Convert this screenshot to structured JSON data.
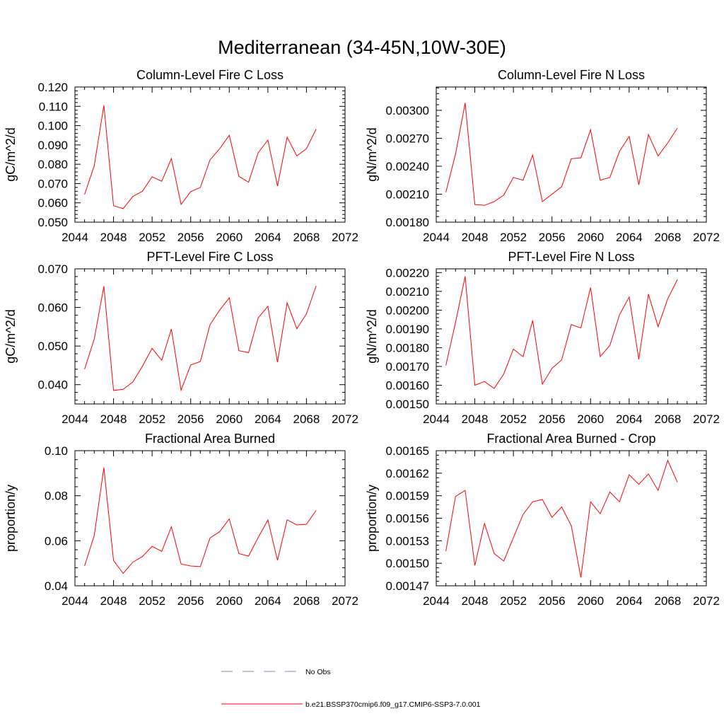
{
  "page": {
    "title": "Mediterranean (34-45N,10W-30E)"
  },
  "legend": {
    "entries": [
      {
        "label": "No Obs",
        "color": "#8080c0",
        "style": "dashed"
      },
      {
        "label": "b.e21.BSSP370cmip6.f09_g17.CMIP6-SSP3-7.0.001",
        "color": "#ff0000",
        "style": "solid"
      }
    ]
  },
  "chart_data": [
    {
      "type": "line",
      "title": "Column-Level Fire C Loss",
      "ylabel": "gC/m^2/d",
      "xlim": [
        2044,
        2072
      ],
      "ylim": [
        0.05,
        0.12
      ],
      "xticks": [
        2044,
        2048,
        2052,
        2056,
        2060,
        2064,
        2068,
        2072
      ],
      "xtick_labels": [
        "2044",
        "2048",
        "2052",
        "2056",
        "2060",
        "2064",
        "2068",
        "2072"
      ],
      "yticks": [
        0.05,
        0.06,
        0.07,
        0.08,
        0.09,
        0.1,
        0.11,
        0.12
      ],
      "ytick_labels": [
        "0.050",
        "0.060",
        "0.070",
        "0.080",
        "0.090",
        "0.100",
        "0.110",
        "0.120"
      ],
      "x": [
        2045,
        2046,
        2047,
        2048,
        2049,
        2050,
        2051,
        2052,
        2053,
        2054,
        2055,
        2056,
        2057,
        2058,
        2059,
        2060,
        2061,
        2062,
        2063,
        2064,
        2065,
        2066,
        2067,
        2068,
        2069
      ],
      "series": [
        {
          "name": "b.e21.BSSP370cmip6.f09_g17.CMIP6-SSP3-7.0.001",
          "color": "#ff0000",
          "values": [
            0.0643,
            0.0792,
            0.1105,
            0.0585,
            0.057,
            0.0633,
            0.066,
            0.0735,
            0.0712,
            0.083,
            0.0592,
            0.0658,
            0.068,
            0.0822,
            0.088,
            0.095,
            0.0737,
            0.0707,
            0.086,
            0.0925,
            0.0687,
            0.094,
            0.0843,
            0.088,
            0.0982
          ]
        }
      ]
    },
    {
      "type": "line",
      "title": "Column-Level Fire N Loss",
      "ylabel": "gN/m^2/d",
      "xlim": [
        2044,
        2072
      ],
      "ylim": [
        0.0018,
        0.00325
      ],
      "xticks": [
        2044,
        2048,
        2052,
        2056,
        2060,
        2064,
        2068,
        2072
      ],
      "xtick_labels": [
        "2044",
        "2048",
        "2052",
        "2056",
        "2060",
        "2064",
        "2068",
        "2072"
      ],
      "yticks": [
        0.0018,
        0.0021,
        0.0024,
        0.0027,
        0.003
      ],
      "ytick_labels": [
        "0.00180",
        "0.00210",
        "0.00240",
        "0.00270",
        "0.00300"
      ],
      "x": [
        2045,
        2046,
        2047,
        2048,
        2049,
        2050,
        2051,
        2052,
        2053,
        2054,
        2055,
        2056,
        2057,
        2058,
        2059,
        2060,
        2061,
        2062,
        2063,
        2064,
        2065,
        2066,
        2067,
        2068,
        2069
      ],
      "series": [
        {
          "name": "b.e21.BSSP370cmip6.f09_g17.CMIP6-SSP3-7.0.001",
          "color": "#ff0000",
          "values": [
            0.00212,
            0.00253,
            0.00308,
            0.00199,
            0.00198,
            0.00202,
            0.00209,
            0.00228,
            0.00225,
            0.00252,
            0.00202,
            0.0021,
            0.00218,
            0.00248,
            0.00249,
            0.00279,
            0.00225,
            0.00228,
            0.00256,
            0.00272,
            0.0022,
            0.00274,
            0.00251,
            0.00265,
            0.00281
          ]
        }
      ]
    },
    {
      "type": "line",
      "title": "PFT-Level Fire C Loss",
      "ylabel": "gC/m^2/d",
      "xlim": [
        2044,
        2072
      ],
      "ylim": [
        0.035,
        0.07
      ],
      "xticks": [
        2044,
        2048,
        2052,
        2056,
        2060,
        2064,
        2068,
        2072
      ],
      "xtick_labels": [
        "2044",
        "2048",
        "2052",
        "2056",
        "2060",
        "2064",
        "2068",
        "2072"
      ],
      "yticks": [
        0.04,
        0.05,
        0.06,
        0.07
      ],
      "ytick_labels": [
        "0.040",
        "0.050",
        "0.060",
        "0.070"
      ],
      "x": [
        2045,
        2046,
        2047,
        2048,
        2049,
        2050,
        2051,
        2052,
        2053,
        2054,
        2055,
        2056,
        2057,
        2058,
        2059,
        2060,
        2061,
        2062,
        2063,
        2064,
        2065,
        2066,
        2067,
        2068,
        2069
      ],
      "series": [
        {
          "name": "b.e21.BSSP370cmip6.f09_g17.CMIP6-SSP3-7.0.001",
          "color": "#ff0000",
          "values": [
            0.044,
            0.0518,
            0.0655,
            0.0385,
            0.0388,
            0.0407,
            0.0448,
            0.0494,
            0.0463,
            0.0544,
            0.0386,
            0.0451,
            0.046,
            0.0555,
            0.0593,
            0.0625,
            0.0488,
            0.0483,
            0.0573,
            0.0603,
            0.0458,
            0.0612,
            0.0545,
            0.0583,
            0.0656
          ]
        }
      ]
    },
    {
      "type": "line",
      "title": "PFT-Level Fire N Loss",
      "ylabel": "gN/m^2/d",
      "xlim": [
        2044,
        2072
      ],
      "ylim": [
        0.0015,
        0.00222
      ],
      "xticks": [
        2044,
        2048,
        2052,
        2056,
        2060,
        2064,
        2068,
        2072
      ],
      "xtick_labels": [
        "2044",
        "2048",
        "2052",
        "2056",
        "2060",
        "2064",
        "2068",
        "2072"
      ],
      "yticks": [
        0.0015,
        0.0016,
        0.0017,
        0.0018,
        0.0019,
        0.002,
        0.0021,
        0.0022
      ],
      "ytick_labels": [
        "0.00150",
        "0.00160",
        "0.00170",
        "0.00180",
        "0.00190",
        "0.00200",
        "0.00210",
        "0.00220"
      ],
      "x": [
        2045,
        2046,
        2047,
        2048,
        2049,
        2050,
        2051,
        2052,
        2053,
        2054,
        2055,
        2056,
        2057,
        2058,
        2059,
        2060,
        2061,
        2062,
        2063,
        2064,
        2065,
        2066,
        2067,
        2068,
        2069
      ],
      "series": [
        {
          "name": "b.e21.BSSP370cmip6.f09_g17.CMIP6-SSP3-7.0.001",
          "color": "#ff0000",
          "values": [
            0.001705,
            0.001935,
            0.00218,
            0.0016,
            0.00162,
            0.001583,
            0.00166,
            0.001792,
            0.001752,
            0.001945,
            0.001605,
            0.00169,
            0.001735,
            0.001923,
            0.001905,
            0.00212,
            0.001752,
            0.001812,
            0.001975,
            0.00207,
            0.001738,
            0.002085,
            0.001912,
            0.00206,
            0.002163
          ]
        }
      ]
    },
    {
      "type": "line",
      "title": "Fractional Area Burned",
      "ylabel": "proportion/y",
      "xlim": [
        2044,
        2072
      ],
      "ylim": [
        0.04,
        0.1
      ],
      "xticks": [
        2044,
        2048,
        2052,
        2056,
        2060,
        2064,
        2068,
        2072
      ],
      "xtick_labels": [
        "2044",
        "2048",
        "2052",
        "2056",
        "2060",
        "2064",
        "2068",
        "2072"
      ],
      "yticks": [
        0.04,
        0.06,
        0.08,
        0.1
      ],
      "ytick_labels": [
        "0.04",
        "0.06",
        "0.08",
        "0.10"
      ],
      "x": [
        2045,
        2046,
        2047,
        2048,
        2049,
        2050,
        2051,
        2052,
        2053,
        2054,
        2055,
        2056,
        2057,
        2058,
        2059,
        2060,
        2061,
        2062,
        2063,
        2064,
        2065,
        2066,
        2067,
        2068,
        2069
      ],
      "series": [
        {
          "name": "b.e21.BSSP370cmip6.f09_g17.CMIP6-SSP3-7.0.001",
          "color": "#ff0000",
          "values": [
            0.0488,
            0.0623,
            0.0925,
            0.0512,
            0.0455,
            0.0505,
            0.053,
            0.0575,
            0.0553,
            0.0662,
            0.0497,
            0.0488,
            0.0485,
            0.0612,
            0.064,
            0.0697,
            0.0543,
            0.0532,
            0.0615,
            0.0692,
            0.0513,
            0.0693,
            0.067,
            0.0673,
            0.0735
          ]
        }
      ]
    },
    {
      "type": "line",
      "title": "Fractional Area Burned - Crop",
      "ylabel": "proportion/y",
      "xlim": [
        2044,
        2072
      ],
      "ylim": [
        0.00147,
        0.00165
      ],
      "xticks": [
        2044,
        2048,
        2052,
        2056,
        2060,
        2064,
        2068,
        2072
      ],
      "xtick_labels": [
        "2044",
        "2048",
        "2052",
        "2056",
        "2060",
        "2064",
        "2068",
        "2072"
      ],
      "yticks": [
        0.00147,
        0.0015,
        0.00153,
        0.00156,
        0.00159,
        0.00162,
        0.00165
      ],
      "ytick_labels": [
        "0.00147",
        "0.00150",
        "0.00153",
        "0.00156",
        "0.00159",
        "0.00162",
        "0.00165"
      ],
      "x": [
        2045,
        2046,
        2047,
        2048,
        2049,
        2050,
        2051,
        2052,
        2053,
        2054,
        2055,
        2056,
        2057,
        2058,
        2059,
        2060,
        2061,
        2062,
        2063,
        2064,
        2065,
        2066,
        2067,
        2068,
        2069
      ],
      "series": [
        {
          "name": "b.e21.BSSP370cmip6.f09_g17.CMIP6-SSP3-7.0.001",
          "color": "#ff0000",
          "values": [
            0.001516,
            0.001589,
            0.001597,
            0.001497,
            0.001553,
            0.001513,
            0.001503,
            0.001534,
            0.001565,
            0.001582,
            0.001585,
            0.001561,
            0.001575,
            0.00155,
            0.001481,
            0.001582,
            0.001566,
            0.001595,
            0.001582,
            0.001618,
            0.001605,
            0.001619,
            0.001597,
            0.001637,
            0.001608
          ]
        }
      ]
    }
  ]
}
